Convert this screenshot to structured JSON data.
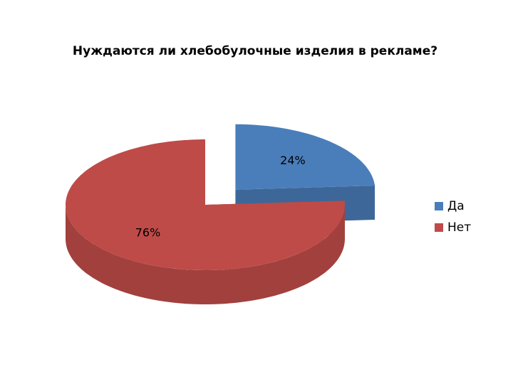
{
  "chart_data": {
    "type": "pie",
    "title": "Нуждаются ли хлебобулочные изделия в рекламе?",
    "categories": [
      "Да",
      "Нет"
    ],
    "values": [
      24,
      76
    ],
    "value_labels": [
      "24%",
      "76%"
    ],
    "colors": [
      "#4a7ebb",
      "#be4b48"
    ],
    "legend": "right",
    "three_d": true,
    "exploded": [
      true,
      false
    ]
  }
}
